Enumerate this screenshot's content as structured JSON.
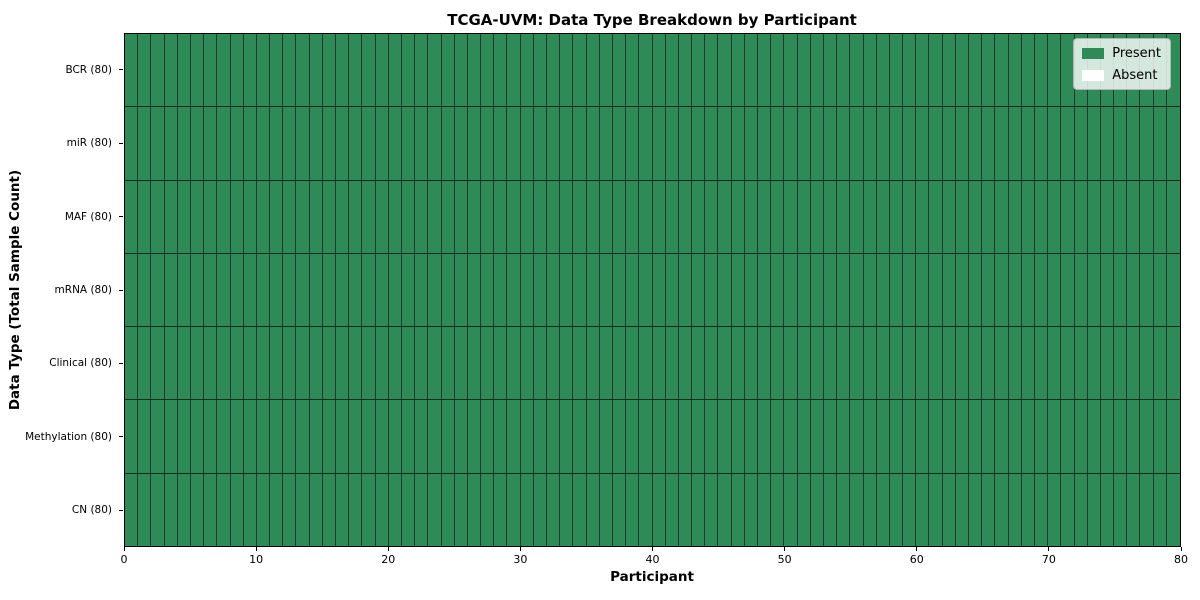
{
  "chart_data": {
    "type": "heatmap",
    "title": "TCGA-UVM: Data Type Breakdown by Participant",
    "xlabel": "Participant",
    "ylabel": "Data Type (Total Sample Count)",
    "x_range": [
      0,
      80
    ],
    "x_ticks": [
      "0",
      "10",
      "20",
      "30",
      "40",
      "50",
      "60",
      "70",
      "80"
    ],
    "n_columns": 80,
    "rows": [
      {
        "label": "BCR (80)",
        "present_count": 80,
        "absent_count": 0
      },
      {
        "label": "miR (80)",
        "present_count": 80,
        "absent_count": 0
      },
      {
        "label": "MAF (80)",
        "present_count": 80,
        "absent_count": 0
      },
      {
        "label": "mRNA (80)",
        "present_count": 80,
        "absent_count": 0
      },
      {
        "label": "Clinical (80)",
        "present_count": 80,
        "absent_count": 0
      },
      {
        "label": "Methylation (80)",
        "present_count": 80,
        "absent_count": 0
      },
      {
        "label": "CN (80)",
        "present_count": 80,
        "absent_count": 0
      }
    ],
    "legend": {
      "position": "upper right",
      "items": [
        {
          "label": "Present",
          "color": "#2e8b57"
        },
        {
          "label": "Absent",
          "color": "#ffffff"
        }
      ]
    },
    "colors": {
      "present": "#2e8b57",
      "absent": "#ffffff",
      "cell_edge": "#1e3c2a",
      "row_edge": "#0e2a1a",
      "spine": "#000000"
    },
    "grid": "off"
  }
}
